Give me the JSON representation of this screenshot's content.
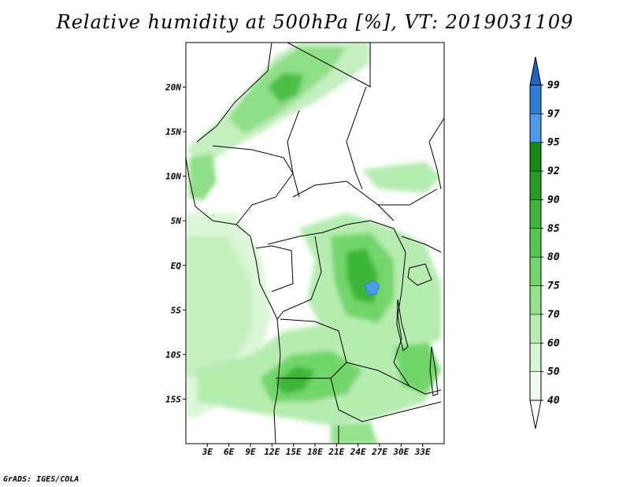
{
  "title": "Relative humidity at 500hPa [%], VT: 2019031109",
  "credit": "GrADS: IGES/COLA",
  "map": {
    "lon_range": [
      0,
      36
    ],
    "lat_range": [
      -20,
      25
    ],
    "lat_ticks": [
      {
        "label": "20N",
        "value": 20
      },
      {
        "label": "15N",
        "value": 15
      },
      {
        "label": "10N",
        "value": 10
      },
      {
        "label": "5N",
        "value": 5
      },
      {
        "label": "EQ",
        "value": 0
      },
      {
        "label": "5S",
        "value": -5
      },
      {
        "label": "10S",
        "value": -10
      },
      {
        "label": "15S",
        "value": -15
      }
    ],
    "lon_ticks": [
      {
        "label": "3E",
        "value": 3
      },
      {
        "label": "6E",
        "value": 6
      },
      {
        "label": "9E",
        "value": 9
      },
      {
        "label": "12E",
        "value": 12
      },
      {
        "label": "15E",
        "value": 15
      },
      {
        "label": "18E",
        "value": 18
      },
      {
        "label": "21E",
        "value": 21
      },
      {
        "label": "24E",
        "value": 24
      },
      {
        "label": "27E",
        "value": 27
      },
      {
        "label": "30E",
        "value": 30
      },
      {
        "label": "33E",
        "value": 33
      }
    ]
  },
  "colorbar": {
    "levels": [
      {
        "label": "40",
        "color": "#f0fbef"
      },
      {
        "label": "50",
        "color": "#d6f5d2"
      },
      {
        "label": "60",
        "color": "#b6ecb0"
      },
      {
        "label": "70",
        "color": "#93e28c"
      },
      {
        "label": "75",
        "color": "#72d66b"
      },
      {
        "label": "80",
        "color": "#55c84f"
      },
      {
        "label": "85",
        "color": "#3db537"
      },
      {
        "label": "90",
        "color": "#259e23"
      },
      {
        "label": "92",
        "color": "#158a14"
      },
      {
        "label": "95",
        "color": "#4d9be8"
      },
      {
        "label": "97",
        "color": "#2f7fd9"
      },
      {
        "label": "99",
        "color": "#1d64c4"
      }
    ]
  }
}
